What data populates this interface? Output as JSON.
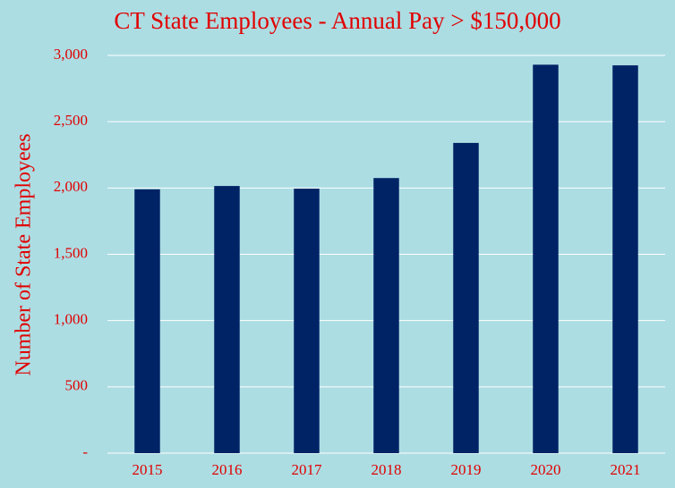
{
  "chart_data": {
    "type": "bar",
    "title": "CT State Employees - Annual Pay > $150,000",
    "y_label": "Number of State Employees",
    "categories": [
      "2015",
      "2016",
      "2017",
      "2018",
      "2019",
      "2020",
      "2021"
    ],
    "values": [
      1990,
      2015,
      1995,
      2075,
      2340,
      2930,
      2925
    ],
    "color": "#002366",
    "ylim": [
      0,
      3000
    ],
    "yticks": [
      {
        "value": 0,
        "label": "-"
      },
      500,
      {
        "value": 1000,
        "label": "1,000"
      },
      {
        "value": 1500,
        "label": "1,500"
      },
      {
        "value": 2000,
        "label": "2,000"
      },
      {
        "value": 2500,
        "label": "2,500"
      },
      {
        "value": 3000,
        "label": "3,000"
      }
    ],
    "grid": true
  }
}
